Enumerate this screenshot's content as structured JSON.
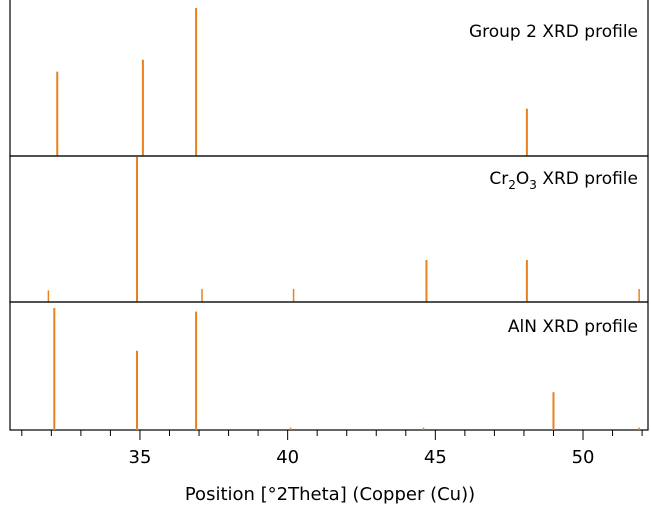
{
  "chart_data": {
    "type": "bar",
    "style": "stick pattern (vertical lines), three stacked panels sharing one x axis",
    "line_color": "#e8821e",
    "xlabel": "Position [°2Theta] (Copper (Cu))",
    "xlim": [
      30.6,
      52.2
    ],
    "x_ticks": [
      35,
      40,
      45,
      50
    ],
    "x_minor_tick_step": 1,
    "grid": false,
    "panels": [
      {
        "label": "Group 2 XRD profile",
        "ylim": [
          0,
          100
        ],
        "peaks": [
          {
            "x": 32.2,
            "intensity": 57
          },
          {
            "x": 35.1,
            "intensity": 65
          },
          {
            "x": 36.9,
            "intensity": 100
          },
          {
            "x": 48.1,
            "intensity": 32
          }
        ]
      },
      {
        "label_parts": {
          "a": "Cr",
          "a_sub": "2",
          "b": "O",
          "b_sub": "3",
          "rest": "XRD profile"
        },
        "ylim": [
          0,
          100
        ],
        "peaks": [
          {
            "x": 31.9,
            "intensity": 8
          },
          {
            "x": 34.9,
            "intensity": 100
          },
          {
            "x": 37.1,
            "intensity": 9
          },
          {
            "x": 40.2,
            "intensity": 9
          },
          {
            "x": 44.7,
            "intensity": 29
          },
          {
            "x": 48.1,
            "intensity": 29
          },
          {
            "x": 51.9,
            "intensity": 9
          }
        ]
      },
      {
        "label": "AlN XRD profile",
        "ylim": [
          0,
          100
        ],
        "peaks": [
          {
            "x": 32.1,
            "intensity": 100
          },
          {
            "x": 34.9,
            "intensity": 65
          },
          {
            "x": 36.9,
            "intensity": 97
          },
          {
            "x": 40.1,
            "intensity": 2
          },
          {
            "x": 44.6,
            "intensity": 2
          },
          {
            "x": 48.0,
            "intensity": 1
          },
          {
            "x": 49.0,
            "intensity": 31
          },
          {
            "x": 51.9,
            "intensity": 2
          }
        ]
      }
    ]
  }
}
